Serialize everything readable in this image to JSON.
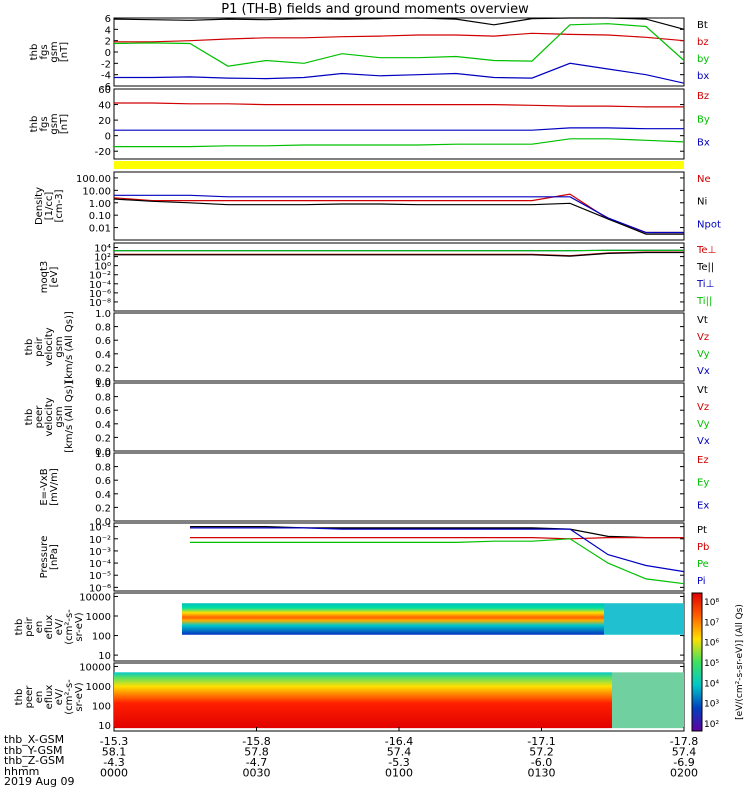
{
  "title": "P1 (TH-B) fields and ground moments overview",
  "colors": {
    "black": "#000000",
    "red": "#d00000",
    "green": "#00c000",
    "blue": "#0000c0",
    "yellow": "#ffff00"
  },
  "chart_data": [
    {
      "type": "line",
      "name": "fgs",
      "ylabel_lines": [
        "thb",
        "fgs",
        "gsm",
        "[nT]"
      ],
      "ylim": [
        -6,
        6
      ],
      "ticks": [
        "6",
        "4",
        "2",
        "0",
        "-2",
        "-4",
        "-6"
      ],
      "tick_values": [
        6,
        4,
        2,
        0,
        -2,
        -4,
        -6
      ],
      "series": [
        {
          "name": "Bt",
          "color": "#000000",
          "values": [
            5.8,
            5.7,
            5.6,
            5.8,
            5.7,
            5.9,
            5.8,
            5.9,
            6.0,
            5.8,
            4.8,
            5.9,
            6.1,
            6.2,
            5.8,
            4.0
          ]
        },
        {
          "name": "bz",
          "color": "#d00000",
          "values": [
            1.8,
            1.8,
            2.0,
            2.3,
            2.5,
            2.5,
            2.7,
            2.8,
            3.0,
            3.0,
            2.8,
            3.3,
            3.1,
            3.0,
            2.6,
            2.0
          ]
        },
        {
          "name": "by",
          "color": "#00c000",
          "values": [
            1.5,
            1.6,
            1.5,
            -2.5,
            -1.5,
            -2.0,
            -0.3,
            -1.0,
            -1.0,
            -0.8,
            -1.5,
            -1.6,
            4.8,
            5.0,
            4.5,
            -1.5
          ]
        },
        {
          "name": "bx",
          "color": "#0000c0",
          "values": [
            -4.5,
            -4.5,
            -4.4,
            -4.6,
            -4.7,
            -4.5,
            -3.8,
            -4.2,
            -4.0,
            -3.8,
            -4.5,
            -4.6,
            -2.0,
            -3.0,
            -4.0,
            -5.5
          ]
        }
      ]
    },
    {
      "type": "line",
      "name": "fgs_dsl",
      "ylabel_lines": [
        "thb",
        "fgs",
        "gsm",
        "[nT]"
      ],
      "ylim": [
        -30,
        60
      ],
      "ticks": [
        "60",
        "40",
        "20",
        "0",
        "-20"
      ],
      "tick_values": [
        60,
        40,
        20,
        0,
        -20
      ],
      "series": [
        {
          "name": "Bz",
          "color": "#d00000",
          "values": [
            42,
            42,
            41,
            41,
            40,
            40,
            40,
            40,
            40,
            40,
            40,
            39,
            38,
            38,
            37,
            37
          ]
        },
        {
          "name": "By",
          "color": "#00c000",
          "values": [
            -14,
            -14,
            -14,
            -13,
            -13,
            -12,
            -12,
            -12,
            -12,
            -11,
            -11,
            -11,
            -4,
            -4,
            -6,
            -8
          ]
        },
        {
          "name": "Bx",
          "color": "#0000c0",
          "values": [
            7,
            7,
            7,
            7,
            7,
            7,
            7,
            7,
            7,
            7,
            7,
            7,
            10,
            10,
            9,
            9
          ]
        }
      ]
    },
    {
      "type": "line",
      "name": "density",
      "log": true,
      "ylabel_lines": [
        "Density",
        "[1/cc]",
        "[cm-3]"
      ],
      "ylim": [
        0.001,
        300
      ],
      "ticks": [
        "100.00",
        "10.00",
        "1.00",
        "0.10",
        "0.01"
      ],
      "tick_values": [
        100,
        10,
        1,
        0.1,
        0.01
      ],
      "series": [
        {
          "name": "Ne",
          "color": "#d00000",
          "values": [
            2.5,
            1.5,
            1.5,
            1.5,
            1.5,
            1.5,
            1.5,
            1.5,
            1.5,
            1.5,
            1.5,
            1.5,
            5,
            0.05,
            0.004,
            0.004
          ]
        },
        {
          "name": "Ni",
          "color": "#000000",
          "values": [
            2.0,
            1.3,
            1.0,
            0.7,
            0.7,
            0.7,
            0.8,
            0.8,
            0.7,
            0.7,
            0.7,
            0.7,
            0.9,
            0.05,
            0.003,
            0.003
          ]
        },
        {
          "name": "Npot",
          "color": "#0000c0",
          "values": [
            4,
            4,
            4,
            3,
            3,
            3,
            3,
            3,
            3,
            3,
            3,
            3,
            3,
            0.06,
            0.004,
            0.004
          ]
        }
      ]
    },
    {
      "type": "line",
      "name": "moqt3",
      "log": true,
      "ylabel_lines": [
        "moqt3",
        "[eV]"
      ],
      "ticks": [
        "10⁴",
        "10²",
        "10⁰",
        "10⁻²",
        "10⁻⁴",
        "10⁻⁶",
        "10⁻⁸"
      ],
      "tick_values": [
        4,
        2,
        0,
        -2,
        -4,
        -6,
        -8
      ],
      "ylim": [
        -10,
        5
      ],
      "series": [
        {
          "name": "Te⊥",
          "color": "#d00000",
          "values": [
            2.5,
            2.5,
            2.5,
            2.5,
            2.5,
            2.5,
            2.5,
            2.5,
            2.5,
            2.5,
            2.5,
            2.5,
            2.2,
            2.8,
            3.0,
            3.0
          ]
        },
        {
          "name": "Te||",
          "color": "#000000",
          "values": [
            2.4,
            2.4,
            2.4,
            2.4,
            2.4,
            2.4,
            2.4,
            2.4,
            2.4,
            2.4,
            2.4,
            2.4,
            2.1,
            2.7,
            2.9,
            2.9
          ]
        },
        {
          "name": "Ti⊥",
          "color": "#0000c0",
          "values": [
            3.3,
            3.3,
            3.3,
            3.3,
            3.3,
            3.3,
            3.3,
            3.3,
            3.3,
            3.3,
            3.3,
            3.3,
            3.3,
            3.4,
            3.4,
            3.4
          ]
        },
        {
          "name": "Ti||",
          "color": "#00c000",
          "values": [
            3.3,
            3.3,
            3.3,
            3.3,
            3.3,
            3.3,
            3.3,
            3.3,
            3.3,
            3.3,
            3.3,
            3.3,
            3.3,
            3.4,
            3.4,
            3.4
          ]
        }
      ]
    },
    {
      "type": "line",
      "name": "peir_velocity",
      "ylabel_lines": [
        "thb",
        "peir",
        "velocity",
        "gsm",
        "[km/s (All Qs)]"
      ],
      "ylim": [
        0,
        1
      ],
      "ticks": [
        "1.0",
        "0.8",
        "0.6",
        "0.4",
        "0.2",
        "0.0"
      ],
      "tick_values": [
        1,
        0.8,
        0.6,
        0.4,
        0.2,
        0
      ],
      "series": [
        {
          "name": "Vt",
          "color": "#000000",
          "values": []
        },
        {
          "name": "Vz",
          "color": "#d00000",
          "values": []
        },
        {
          "name": "Vy",
          "color": "#00c000",
          "values": []
        },
        {
          "name": "Vx",
          "color": "#0000c0",
          "values": []
        }
      ]
    },
    {
      "type": "line",
      "name": "peer_velocity",
      "ylabel_lines": [
        "thb",
        "peer",
        "velocity",
        "gsm",
        "[km/s (All Qs)]"
      ],
      "ylim": [
        0,
        1
      ],
      "ticks": [
        "1.0",
        "0.8",
        "0.6",
        "0.4",
        "0.2",
        "0.0"
      ],
      "tick_values": [
        1,
        0.8,
        0.6,
        0.4,
        0.2,
        0
      ],
      "series": [
        {
          "name": "Vt",
          "color": "#000000",
          "values": []
        },
        {
          "name": "Vz",
          "color": "#d00000",
          "values": []
        },
        {
          "name": "Vy",
          "color": "#00c000",
          "values": []
        },
        {
          "name": "Vx",
          "color": "#0000c0",
          "values": []
        }
      ]
    },
    {
      "type": "line",
      "name": "efield",
      "ylabel_lines": [
        "E=-VxB",
        "[mV/m]"
      ],
      "ylim": [
        0,
        1
      ],
      "ticks": [
        "1.0",
        "0.8",
        "0.6",
        "0.4",
        "0.2",
        "0.0"
      ],
      "tick_values": [
        1,
        0.8,
        0.6,
        0.4,
        0.2,
        0
      ],
      "series": [
        {
          "name": "Ez",
          "color": "#d00000",
          "values": []
        },
        {
          "name": "Ey",
          "color": "#00c000",
          "values": []
        },
        {
          "name": "Ex",
          "color": "#0000c0",
          "values": []
        }
      ]
    },
    {
      "type": "line",
      "name": "pressure",
      "log": true,
      "ylabel_lines": [
        "Pressure",
        "[nPa]"
      ],
      "ylim": [
        -6.3,
        -0.7
      ],
      "ticks": [
        "10⁻¹",
        "10⁻²",
        "10⁻³",
        "10⁻⁴",
        "10⁻⁵",
        "10⁻⁶"
      ],
      "tick_values": [
        -1,
        -2,
        -3,
        -4,
        -5,
        -6
      ],
      "series": [
        {
          "name": "Pt",
          "color": "#000000",
          "values": [
            null,
            null,
            -1.0,
            -1.0,
            -1.0,
            -1.1,
            -1.1,
            -1.1,
            -1.1,
            -1.1,
            -1.1,
            -1.1,
            -1.2,
            -1.8,
            -1.9,
            -1.9
          ]
        },
        {
          "name": "Pb",
          "color": "#d00000",
          "values": [
            null,
            null,
            -1.9,
            -1.9,
            -1.9,
            -1.9,
            -1.9,
            -1.9,
            -1.9,
            -1.9,
            -1.9,
            -1.9,
            -2.0,
            -1.9,
            -1.9,
            -1.9
          ]
        },
        {
          "name": "Pe",
          "color": "#00c000",
          "values": [
            null,
            null,
            -2.3,
            -2.3,
            -2.3,
            -2.3,
            -2.3,
            -2.3,
            -2.3,
            -2.3,
            -2.2,
            -2.2,
            -2.0,
            -4.0,
            -5.3,
            -5.7
          ]
        },
        {
          "name": "Pi",
          "color": "#0000c0",
          "values": [
            null,
            null,
            -1.1,
            -1.1,
            -1.1,
            -1.1,
            -1.2,
            -1.2,
            -1.2,
            -1.2,
            -1.2,
            -1.2,
            -1.2,
            -3.3,
            -4.2,
            -4.7
          ]
        }
      ]
    },
    {
      "type": "heatmap",
      "name": "peir_eflux",
      "ylabel_lines": [
        "thb",
        "peir",
        "en",
        "eflux",
        "eV/",
        "(cm²-s-",
        "sr-eV)"
      ],
      "ylim": [
        5,
        15000
      ],
      "ticks": [
        "10000",
        "1000",
        "100",
        "10"
      ],
      "tick_values": [
        10000,
        1000,
        100,
        10
      ]
    },
    {
      "type": "heatmap",
      "name": "peer_eflux",
      "ylabel_lines": [
        "thb",
        "peer",
        "en",
        "eflux",
        "eV/",
        "(cm²-s-",
        "sr-eV)"
      ],
      "ylim": [
        5,
        15000
      ],
      "ticks": [
        "10000",
        "1000",
        "100",
        "10"
      ],
      "tick_values": [
        10000,
        1000,
        100,
        10
      ]
    }
  ],
  "colorbar": {
    "label": "[eV/(cm²-s-sr-eV)] (All Qs)",
    "ticks": [
      "10⁸",
      "10⁷",
      "10⁶",
      "10⁵",
      "10⁴",
      "10³",
      "10²"
    ],
    "label2": "[eV/(cm²-s-sr-eV)] (All Qs)"
  },
  "xaxis": {
    "rows": [
      {
        "label": "thb_X-GSM",
        "values": [
          "-15.3",
          "-15.8",
          "-16.4",
          "-17.1",
          "-17.8"
        ]
      },
      {
        "label": "thb_Y-GSM",
        "values": [
          "58.1",
          "57.8",
          "57.4",
          "57.2",
          "57.4"
        ]
      },
      {
        "label": "thb_Z-GSM",
        "values": [
          "-4.3",
          "-4.7",
          "-5.3",
          "-6.0",
          "-6.9"
        ]
      },
      {
        "label": "hhmm",
        "values": [
          "0000",
          "0030",
          "0100",
          "0130",
          "0200"
        ]
      }
    ],
    "date": "2019 Aug 09"
  }
}
